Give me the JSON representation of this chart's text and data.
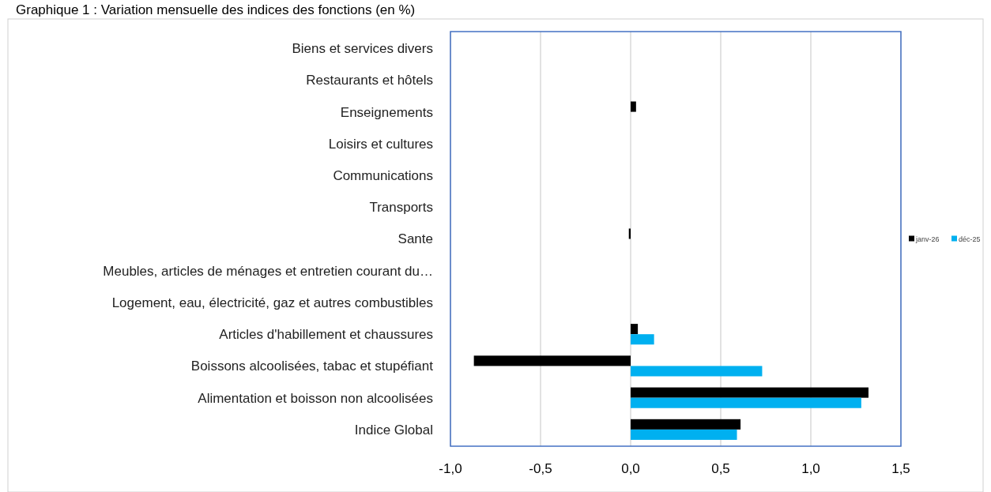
{
  "chart_data": {
    "type": "bar",
    "orientation": "horizontal",
    "title": "Graphique 1 : Variation mensuelle des indices des fonctions (en %)",
    "categories": [
      "Biens et services divers",
      "Restaurants et hôtels",
      "Enseignements",
      "Loisirs et cultures",
      "Communications",
      "Transports",
      "Sante",
      "Meubles, articles de ménages et entretien courant du…",
      "Logement, eau, électricité, gaz et autres combustibles",
      "Articles d'habillement et chaussures",
      "Boissons alcoolisées, tabac et stupéfiant",
      "Alimentation et boisson non alcoolisées",
      "Indice Global"
    ],
    "series": [
      {
        "name": "janv-26",
        "color": "#000000",
        "values": [
          null,
          null,
          0.03,
          null,
          null,
          null,
          -0.01,
          null,
          null,
          0.04,
          -0.87,
          1.32,
          0.61
        ]
      },
      {
        "name": "déc-25",
        "color": "#00b0f0",
        "values": [
          null,
          null,
          null,
          null,
          null,
          null,
          null,
          null,
          null,
          0.13,
          0.73,
          1.28,
          0.59
        ]
      }
    ],
    "xlim": [
      -1.0,
      1.5
    ],
    "xticks": [
      {
        "value": -1.0,
        "label": "-1,0"
      },
      {
        "value": -0.5,
        "label": "-0,5"
      },
      {
        "value": 0,
        "label": "0,0"
      },
      {
        "value": 0.5,
        "label": "0,5"
      },
      {
        "value": 1.0,
        "label": "1,0"
      },
      {
        "value": 1.5,
        "label": "1,5"
      }
    ],
    "grid": "x",
    "legend": "right"
  }
}
